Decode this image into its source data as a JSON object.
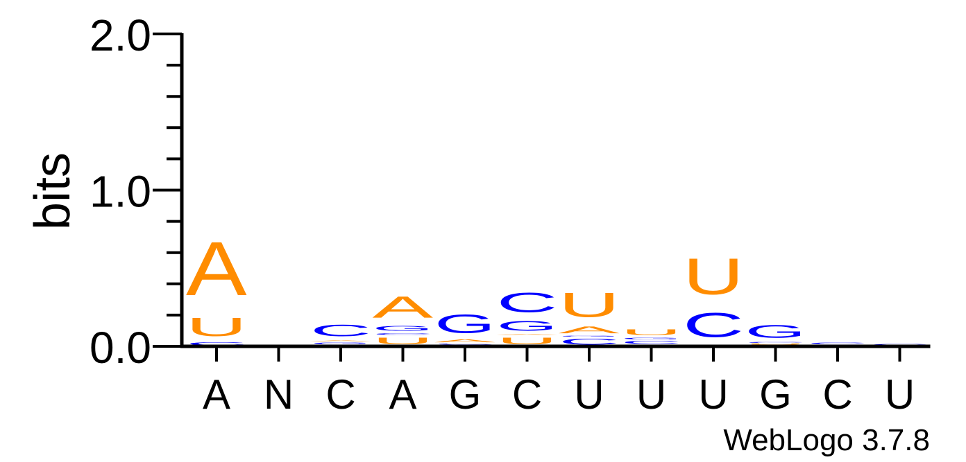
{
  "chart_data": {
    "type": "sequence-logo",
    "ylabel": "bits",
    "ylim": [
      0,
      2.0
    ],
    "y_ticks": [
      "0.0",
      "1.0",
      "2.0"
    ],
    "y_tick_values": [
      0,
      1,
      2
    ],
    "x_tick_labels": [
      "A",
      "N",
      "C",
      "A",
      "G",
      "C",
      "U",
      "U",
      "U",
      "G",
      "C",
      "U"
    ],
    "colors": {
      "A": "#ff8c00",
      "U": "#ff8c00",
      "C": "#0000ff",
      "G": "#0000ff"
    },
    "positions": [
      [
        {
          "letter": "C",
          "height": 0.03
        },
        {
          "letter": "U",
          "height": 0.19
        },
        {
          "letter": "A",
          "height": 0.55
        }
      ],
      [],
      [
        {
          "letter": "U",
          "height": 0.01
        },
        {
          "letter": "G",
          "height": 0.02
        },
        {
          "letter": "A",
          "height": 0.01
        },
        {
          "letter": "C",
          "height": 0.12
        }
      ],
      [
        {
          "letter": "U",
          "height": 0.07
        },
        {
          "letter": "C",
          "height": 0.02
        },
        {
          "letter": "G",
          "height": 0.05
        },
        {
          "letter": "A",
          "height": 0.22
        }
      ],
      [
        {
          "letter": "U",
          "height": 0.01
        },
        {
          "letter": "C",
          "height": 0.01
        },
        {
          "letter": "A",
          "height": 0.03
        },
        {
          "letter": "G",
          "height": 0.19
        }
      ],
      [
        {
          "letter": "U",
          "height": 0.07
        },
        {
          "letter": "A",
          "height": 0.01
        },
        {
          "letter": "G",
          "height": 0.1
        },
        {
          "letter": "C",
          "height": 0.2
        }
      ],
      [
        {
          "letter": "C",
          "height": 0.06
        },
        {
          "letter": "G",
          "height": 0.01
        },
        {
          "letter": "A",
          "height": 0.07
        },
        {
          "letter": "U",
          "height": 0.25
        }
      ],
      [
        {
          "letter": "A",
          "height": 0.01
        },
        {
          "letter": "C",
          "height": 0.03
        },
        {
          "letter": "G",
          "height": 0.02
        },
        {
          "letter": "U",
          "height": 0.06
        }
      ],
      [
        {
          "letter": "A",
          "height": 0.01
        },
        {
          "letter": "C",
          "height": 0.25
        },
        {
          "letter": "U",
          "height": 0.37
        }
      ],
      [
        {
          "letter": "A",
          "height": 0.01
        },
        {
          "letter": "U",
          "height": 0.01
        },
        {
          "letter": "C",
          "height": 0.01
        },
        {
          "letter": "G",
          "height": 0.13
        }
      ],
      [
        {
          "letter": "A",
          "height": 0.01
        },
        {
          "letter": "C",
          "height": 0.02
        }
      ],
      [
        {
          "letter": "C",
          "height": 0.02
        }
      ]
    ]
  },
  "footer": "WebLogo 3.7.8"
}
